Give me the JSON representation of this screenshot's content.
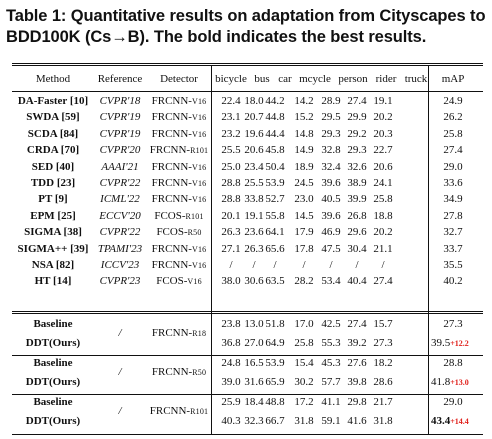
{
  "caption": "Table 1: Quantitative results on adaptation from Cityscapes to BDD100K (Cs→B). The bold indicates the best results.",
  "headers": [
    "Method",
    "Reference",
    "Detector",
    "bicycle",
    "bus",
    "car",
    "mcycle",
    "person",
    "rider",
    "truck",
    "mAP"
  ],
  "rows": [
    {
      "method": "DA-Faster [10]",
      "ref": "CVPR'18",
      "det_main": "FRCNN-",
      "det_sub": "V16",
      "vals": [
        "22.4",
        "18.0",
        "44.2",
        "14.2",
        "28.9",
        "27.4",
        "19.1"
      ],
      "map": "24.9"
    },
    {
      "method": "SWDA [59]",
      "ref": "CVPR'19",
      "det_main": "FRCNN-",
      "det_sub": "V16",
      "vals": [
        "23.1",
        "20.7",
        "44.8",
        "15.2",
        "29.5",
        "29.9",
        "20.2"
      ],
      "map": "26.2"
    },
    {
      "method": "SCDA [84]",
      "ref": "CVPR'19",
      "det_main": "FRCNN-",
      "det_sub": "V16",
      "vals": [
        "23.2",
        "19.6",
        "44.4",
        "14.8",
        "29.3",
        "29.2",
        "20.3"
      ],
      "map": "25.8"
    },
    {
      "method": "CRDA [70]",
      "ref": "CVPR'20",
      "det_main": "FRCNN-",
      "det_sub": "R101",
      "vals": [
        "25.5",
        "20.6",
        "45.8",
        "14.9",
        "32.8",
        "29.3",
        "22.7"
      ],
      "map": "27.4"
    },
    {
      "method": "SED [40]",
      "ref": "AAAI'21",
      "det_main": "FRCNN-",
      "det_sub": "V16",
      "vals": [
        "25.0",
        "23.4",
        "50.4",
        "18.9",
        "32.4",
        "32.6",
        "20.6"
      ],
      "map": "29.0"
    },
    {
      "method": "TDD [23]",
      "ref": "CVPR'22",
      "det_main": "FRCNN-",
      "det_sub": "V16",
      "vals": [
        "28.8",
        "25.5",
        "53.9",
        "24.5",
        "39.6",
        "38.9",
        "24.1"
      ],
      "map": "33.6"
    },
    {
      "method": "PT [9]",
      "ref": "ICML'22",
      "det_main": "FRCNN-",
      "det_sub": "V16",
      "vals": [
        "28.8",
        "33.8",
        "52.7",
        "23.0",
        "40.5",
        "39.9",
        "25.8"
      ],
      "map": "34.9"
    },
    {
      "method": "EPM [25]",
      "ref": "ECCV'20",
      "det_main": "FCOS-",
      "det_sub": "R101",
      "vals": [
        "20.1",
        "19.1",
        "55.8",
        "14.5",
        "39.6",
        "26.8",
        "18.8"
      ],
      "map": "27.8"
    },
    {
      "method": "SIGMA [38]",
      "ref": "CVPR'22",
      "det_main": "FCOS-",
      "det_sub": "R50",
      "vals": [
        "26.3",
        "23.6",
        "64.1",
        "17.9",
        "46.9",
        "29.6",
        "20.2"
      ],
      "map": "32.7"
    },
    {
      "method": "SIGMA++ [39]",
      "ref": "TPAMI'23",
      "det_main": "FRCNN-",
      "det_sub": "V16",
      "vals": [
        "27.1",
        "26.3",
        "65.6",
        "17.8",
        "47.5",
        "30.4",
        "21.1"
      ],
      "map": "33.7"
    },
    {
      "method": "NSA [82]",
      "ref": "ICCV'23",
      "det_main": "FRCNN-",
      "det_sub": "V16",
      "vals": [
        "/",
        "/",
        "/",
        "/",
        "/",
        "/",
        "/"
      ],
      "map": "35.5"
    },
    {
      "method": "HT [14]",
      "ref": "CVPR'23",
      "det_main": "FCOS-",
      "det_sub": "V16",
      "vals": [
        "38.0",
        "30.6",
        "63.5",
        "28.2",
        "53.4",
        "40.4",
        "27.4"
      ],
      "map": "40.2"
    }
  ],
  "groups": [
    {
      "ref": "/",
      "det_main": "FRCNN-",
      "det_sub": "R18",
      "baseline": {
        "method": "Baseline",
        "vals": [
          "23.8",
          "13.0",
          "51.8",
          "17.0",
          "42.5",
          "27.4",
          "15.7"
        ],
        "map": "27.3"
      },
      "ours": {
        "method": "DDT(Ours)",
        "vals": [
          "36.8",
          "27.0",
          "64.9",
          "25.8",
          "55.3",
          "39.2",
          "27.3"
        ],
        "map": "39.5",
        "gain": "+12.2"
      }
    },
    {
      "ref": "/",
      "det_main": "FRCNN-",
      "det_sub": "R50",
      "baseline": {
        "method": "Baseline",
        "vals": [
          "24.8",
          "16.5",
          "53.9",
          "15.4",
          "45.3",
          "27.6",
          "18.2"
        ],
        "map": "28.8"
      },
      "ours": {
        "method": "DDT(Ours)",
        "vals": [
          "39.0",
          "31.6",
          "65.9",
          "30.2",
          "57.7",
          "39.8",
          "28.6"
        ],
        "map": "41.8",
        "gain": "+13.0"
      }
    },
    {
      "ref": "/",
      "det_main": "FRCNN-",
      "det_sub": "R101",
      "baseline": {
        "method": "Baseline",
        "vals": [
          "25.9",
          "18.4",
          "48.8",
          "17.2",
          "41.1",
          "29.8",
          "21.7"
        ],
        "map": "29.0"
      },
      "ours": {
        "method": "DDT(Ours)",
        "vals": [
          "40.3",
          "32.3",
          "66.7",
          "31.8",
          "59.1",
          "41.6",
          "31.8"
        ],
        "map": "43.4",
        "gain": "+14.4",
        "map_bold": true
      }
    }
  ]
}
